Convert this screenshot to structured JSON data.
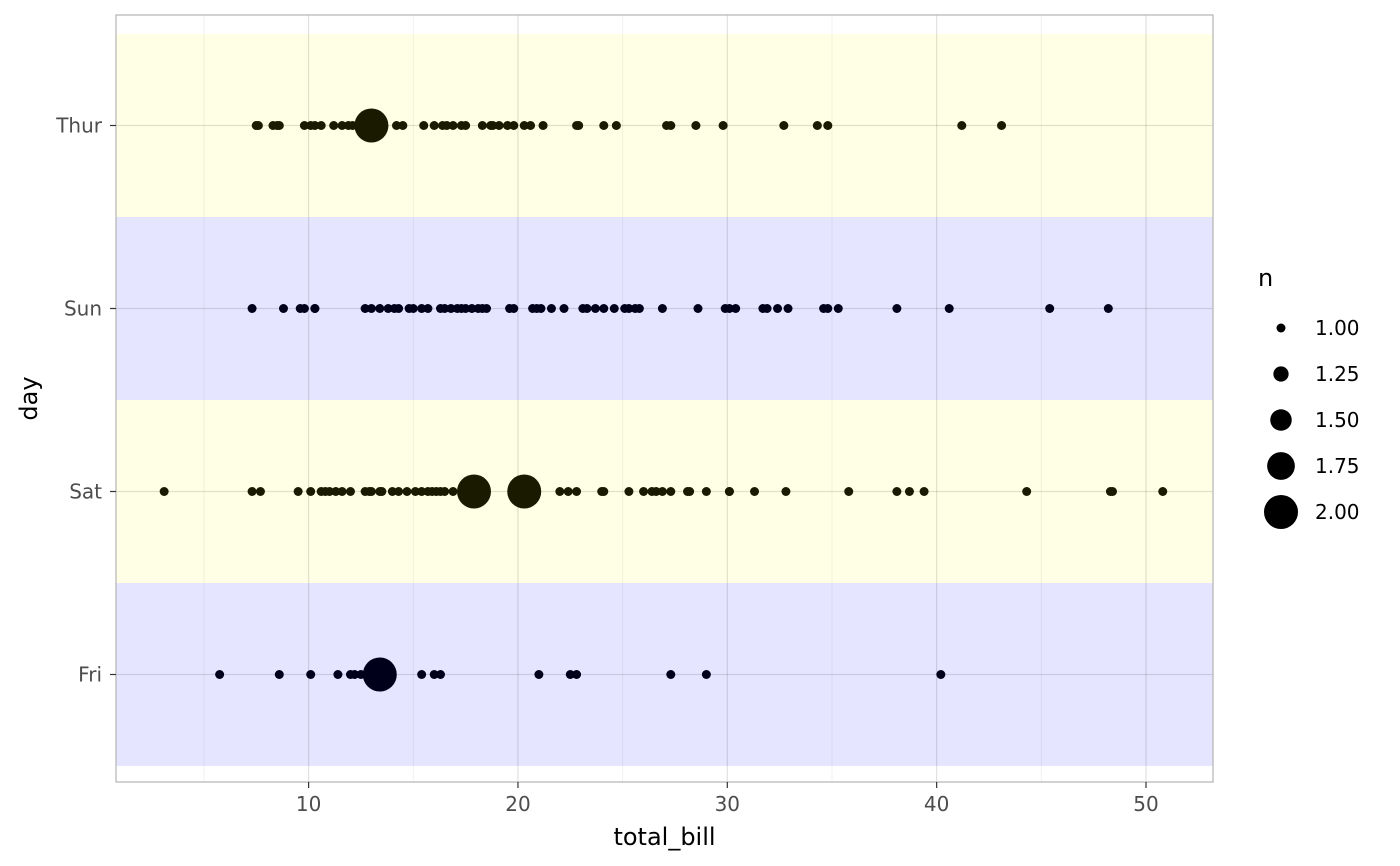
{
  "chart_data": {
    "type": "scatter",
    "xlabel": "total_bill",
    "ylabel": "day",
    "xlim": [
      0.8,
      53.2
    ],
    "x_ticks": [
      10,
      20,
      30,
      40,
      50
    ],
    "x_tick_labels": [
      "10",
      "20",
      "30",
      "40",
      "50"
    ],
    "categories": [
      "Fri",
      "Sat",
      "Sun",
      "Thur"
    ],
    "band_colors": {
      "Fri": "#e5e5ff",
      "Sat": "#ffffe5",
      "Sun": "#e5e5ff",
      "Thur": "#ffffe5"
    },
    "point_colors": {
      "Fri": "#00001a",
      "Sat": "#1a1a00",
      "Sun": "#00001a",
      "Thur": "#1a1a00"
    },
    "grid": true,
    "legend": {
      "title": "n",
      "position": "right",
      "entries": [
        {
          "label": "1.00",
          "n": 1.0
        },
        {
          "label": "1.25",
          "n": 1.25
        },
        {
          "label": "1.50",
          "n": 1.5
        },
        {
          "label": "1.75",
          "n": 1.75
        },
        {
          "label": "2.00",
          "n": 2.0
        }
      ]
    },
    "series": [
      {
        "category": "Thur",
        "points": [
          [
            7.5,
            1
          ],
          [
            7.6,
            1
          ],
          [
            8.3,
            1
          ],
          [
            8.5,
            1
          ],
          [
            8.6,
            1
          ],
          [
            9.8,
            1
          ],
          [
            10.1,
            1
          ],
          [
            10.3,
            1
          ],
          [
            10.6,
            1
          ],
          [
            11.2,
            1
          ],
          [
            11.6,
            1
          ],
          [
            11.9,
            1
          ],
          [
            12.1,
            1
          ],
          [
            12.4,
            1
          ],
          [
            13.0,
            2
          ],
          [
            14.2,
            1
          ],
          [
            14.5,
            1
          ],
          [
            15.5,
            1
          ],
          [
            16.0,
            1
          ],
          [
            16.4,
            1
          ],
          [
            16.6,
            1
          ],
          [
            16.9,
            1
          ],
          [
            17.3,
            1
          ],
          [
            17.5,
            1
          ],
          [
            18.3,
            1
          ],
          [
            18.7,
            1
          ],
          [
            18.8,
            1
          ],
          [
            19.1,
            1
          ],
          [
            19.5,
            1
          ],
          [
            19.8,
            1
          ],
          [
            20.3,
            1
          ],
          [
            20.6,
            1
          ],
          [
            21.2,
            1
          ],
          [
            22.8,
            1
          ],
          [
            22.9,
            1
          ],
          [
            24.1,
            1
          ],
          [
            24.7,
            1
          ],
          [
            27.1,
            1
          ],
          [
            27.3,
            1
          ],
          [
            28.5,
            1
          ],
          [
            29.8,
            1
          ],
          [
            32.7,
            1
          ],
          [
            34.3,
            1
          ],
          [
            34.8,
            1
          ],
          [
            41.2,
            1
          ],
          [
            43.1,
            1
          ]
        ]
      },
      {
        "category": "Sun",
        "points": [
          [
            7.3,
            1
          ],
          [
            8.8,
            1
          ],
          [
            9.6,
            1
          ],
          [
            9.8,
            1
          ],
          [
            10.3,
            1
          ],
          [
            10.3,
            1
          ],
          [
            12.7,
            1
          ],
          [
            13.0,
            1
          ],
          [
            13.4,
            1
          ],
          [
            13.8,
            1
          ],
          [
            14.1,
            1
          ],
          [
            14.3,
            1
          ],
          [
            14.8,
            1
          ],
          [
            15.0,
            1
          ],
          [
            15.4,
            1
          ],
          [
            15.7,
            1
          ],
          [
            16.3,
            1
          ],
          [
            16.5,
            1
          ],
          [
            16.8,
            1
          ],
          [
            17.1,
            1
          ],
          [
            17.3,
            1
          ],
          [
            17.5,
            1
          ],
          [
            17.8,
            1
          ],
          [
            18.1,
            1
          ],
          [
            18.3,
            1
          ],
          [
            18.5,
            1
          ],
          [
            19.6,
            1
          ],
          [
            19.8,
            1
          ],
          [
            20.7,
            1
          ],
          [
            20.9,
            1
          ],
          [
            21.1,
            1
          ],
          [
            21.6,
            1
          ],
          [
            22.2,
            1
          ],
          [
            23.1,
            1
          ],
          [
            23.3,
            1
          ],
          [
            23.7,
            1
          ],
          [
            24.1,
            1
          ],
          [
            24.6,
            1
          ],
          [
            25.1,
            1
          ],
          [
            25.3,
            1
          ],
          [
            25.6,
            1
          ],
          [
            25.8,
            1
          ],
          [
            26.9,
            1
          ],
          [
            28.6,
            1
          ],
          [
            29.9,
            1
          ],
          [
            30.1,
            1
          ],
          [
            30.4,
            1
          ],
          [
            31.7,
            1
          ],
          [
            31.9,
            1
          ],
          [
            32.4,
            1
          ],
          [
            32.9,
            1
          ],
          [
            34.6,
            1
          ],
          [
            34.8,
            1
          ],
          [
            35.3,
            1
          ],
          [
            38.1,
            1
          ],
          [
            40.6,
            1
          ],
          [
            45.4,
            1
          ],
          [
            48.2,
            1
          ]
        ]
      },
      {
        "category": "Sat",
        "points": [
          [
            3.1,
            1
          ],
          [
            7.3,
            1
          ],
          [
            7.7,
            1
          ],
          [
            9.5,
            1
          ],
          [
            10.1,
            1
          ],
          [
            10.6,
            1
          ],
          [
            10.8,
            1
          ],
          [
            11.0,
            1
          ],
          [
            11.3,
            1
          ],
          [
            11.6,
            1
          ],
          [
            12.0,
            1
          ],
          [
            12.7,
            1
          ],
          [
            12.9,
            1
          ],
          [
            13.0,
            1
          ],
          [
            13.4,
            1
          ],
          [
            13.5,
            1
          ],
          [
            14.0,
            1
          ],
          [
            14.3,
            1
          ],
          [
            14.7,
            1
          ],
          [
            15.1,
            1
          ],
          [
            15.4,
            1
          ],
          [
            15.7,
            1
          ],
          [
            15.9,
            1
          ],
          [
            16.1,
            1
          ],
          [
            16.3,
            1
          ],
          [
            16.5,
            1
          ],
          [
            16.9,
            1
          ],
          [
            17.9,
            2
          ],
          [
            20.3,
            2
          ],
          [
            22.0,
            1
          ],
          [
            22.4,
            1
          ],
          [
            22.8,
            1
          ],
          [
            24.0,
            1
          ],
          [
            24.1,
            1
          ],
          [
            25.3,
            1
          ],
          [
            26.0,
            1
          ],
          [
            26.4,
            1
          ],
          [
            26.6,
            1
          ],
          [
            26.9,
            1
          ],
          [
            27.3,
            1
          ],
          [
            28.1,
            1
          ],
          [
            28.2,
            1
          ],
          [
            29.0,
            1
          ],
          [
            30.1,
            1
          ],
          [
            30.1,
            1
          ],
          [
            31.3,
            1
          ],
          [
            32.8,
            1
          ],
          [
            35.8,
            1
          ],
          [
            38.1,
            1
          ],
          [
            38.7,
            1
          ],
          [
            39.4,
            1
          ],
          [
            44.3,
            1
          ],
          [
            48.3,
            1
          ],
          [
            48.4,
            1
          ],
          [
            50.8,
            1
          ]
        ]
      },
      {
        "category": "Fri",
        "points": [
          [
            5.75,
            1
          ],
          [
            8.6,
            1
          ],
          [
            10.1,
            1
          ],
          [
            11.4,
            1
          ],
          [
            12.0,
            1
          ],
          [
            12.2,
            1
          ],
          [
            12.5,
            1
          ],
          [
            13.4,
            2
          ],
          [
            15.4,
            1
          ],
          [
            16.0,
            1
          ],
          [
            16.3,
            1
          ],
          [
            21.0,
            1
          ],
          [
            22.5,
            1
          ],
          [
            22.8,
            1
          ],
          [
            27.3,
            1
          ],
          [
            29.0,
            1
          ],
          [
            40.2,
            1
          ]
        ]
      }
    ]
  }
}
